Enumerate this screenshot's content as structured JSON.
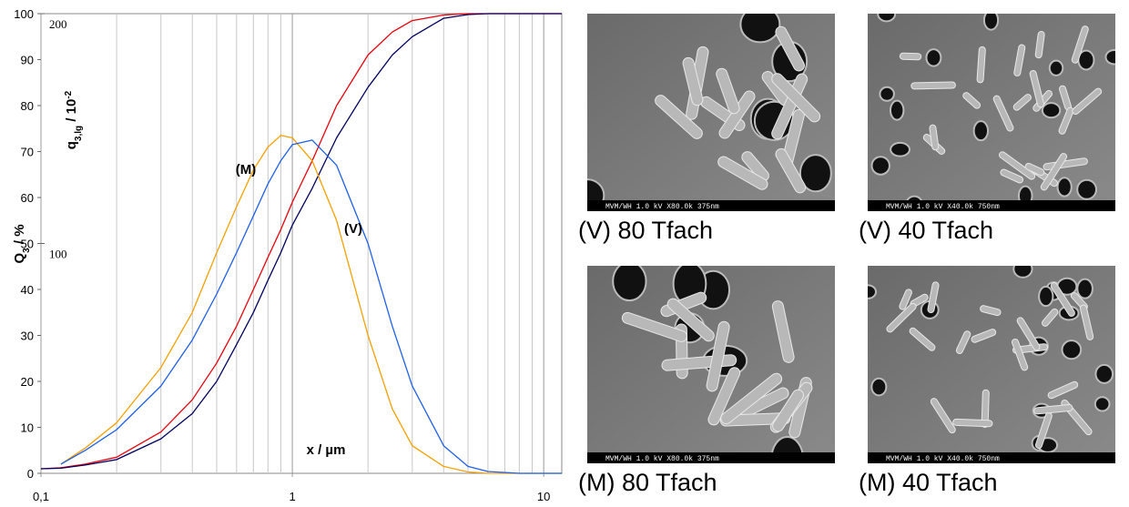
{
  "chart_data": {
    "type": "line",
    "ylabel": {
      "main": "Q",
      "sub": "3",
      "rest": " / %"
    },
    "y2label": {
      "main": "q",
      "sub": "3,lg",
      "rest": " / 10",
      "sup": "-2"
    },
    "xlabel": "x / µm",
    "annotations": [
      "(M)",
      "(V)"
    ],
    "log_x": true,
    "xlim": [
      0.1,
      11.8
    ],
    "xticks": [
      {
        "value": 0.1,
        "label": "0,1"
      },
      1,
      10
    ],
    "xgrid": [
      0.2,
      0.3,
      0.4,
      0.5,
      0.6,
      0.7,
      0.8,
      0.9,
      2,
      3,
      4,
      5,
      6,
      7,
      8,
      9
    ],
    "ylim": [
      0,
      100
    ],
    "yticks": [
      0,
      10,
      20,
      30,
      40,
      50,
      60,
      70,
      80,
      90,
      100
    ],
    "y2lim": [
      0,
      200
    ],
    "y2ticks": [
      100,
      200
    ],
    "x": [
      0.1,
      0.12,
      0.15,
      0.2,
      0.3,
      0.4,
      0.5,
      0.6,
      0.7,
      0.8,
      0.9,
      1,
      1.2,
      1.5,
      2,
      2.5,
      3,
      4,
      5,
      6,
      8,
      10,
      11.8
    ],
    "series": [
      {
        "color": "#e8000b",
        "values": [
          1,
          1.2,
          2,
          3.5,
          9,
          16,
          24,
          32,
          40,
          47,
          53,
          59,
          68,
          80,
          91,
          96,
          98.5,
          99.7,
          100,
          100,
          100,
          100,
          100
        ]
      },
      {
        "color": "#000060",
        "values": [
          1,
          1.1,
          1.8,
          3,
          7.5,
          13,
          20,
          28,
          35,
          42,
          48,
          54,
          62,
          73,
          84,
          91,
          95,
          99,
          99.8,
          100,
          100,
          100,
          100
        ]
      },
      {
        "color": "#f5a000",
        "axis": "y2",
        "values": [
          null,
          4,
          11,
          22,
          46,
          70,
          96,
          116,
          132,
          142,
          147,
          146,
          136,
          110,
          60,
          28,
          12,
          3,
          0.6,
          0,
          0,
          0,
          0
        ]
      },
      {
        "color": "#1f5fe8",
        "axis": "y2",
        "values": [
          null,
          4,
          10,
          19,
          38,
          58,
          78,
          96,
          112,
          126,
          136,
          143,
          145,
          134,
          100,
          64,
          38,
          12,
          3,
          0.8,
          0,
          0,
          0
        ]
      }
    ]
  },
  "images": [
    {
      "caption": "(V) 80 Tfach",
      "scalebar": "MVM/WH 1.0 kV X80.0k 375nm"
    },
    {
      "caption": "(V) 40 Tfach",
      "scalebar": "MVM/WH 1.0 kV X40.0k 750nm"
    },
    {
      "caption": "(M) 80 Tfach",
      "scalebar": "MVM/WH 1.0 kV X80.0k 375nm"
    },
    {
      "caption": "(M) 40 Tfach",
      "scalebar": "MVM/WH 1.0 kV X40.0k 750nm"
    }
  ]
}
